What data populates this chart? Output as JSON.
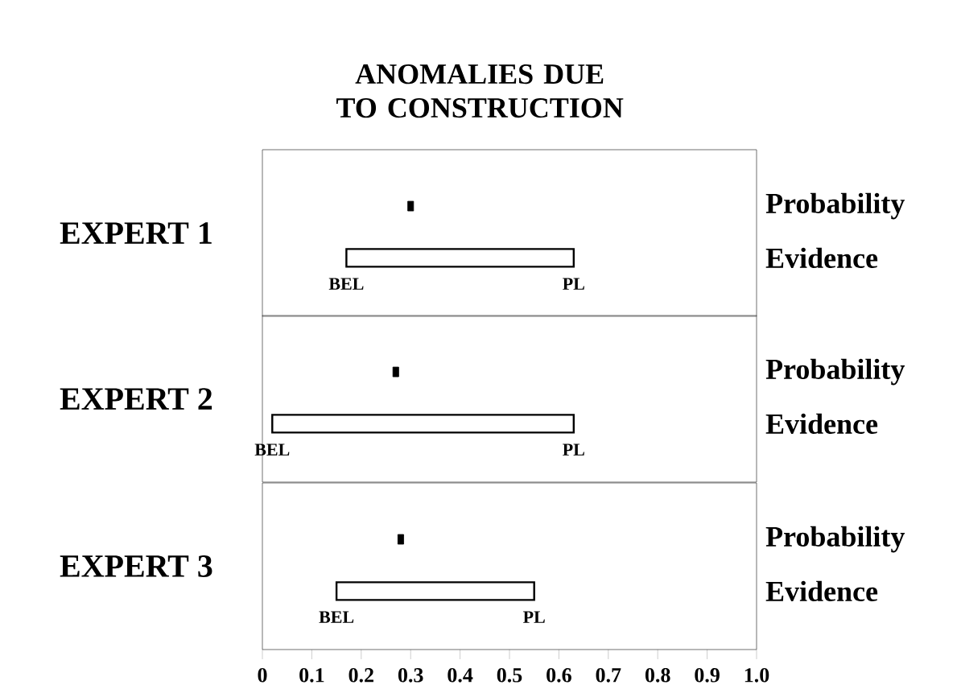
{
  "chart_data": [
    {
      "type": "bar",
      "orientation": "horizontal",
      "title": "ANOMALIES DUE TO CONSTRUCTION",
      "ylabel": "EXPERT 1",
      "categories": [
        "Probability",
        "Evidence"
      ],
      "xlim": [
        0,
        1
      ],
      "tick_labels": "y",
      "series": [
        {
          "type": "scatter",
          "color": "#000000",
          "values": [
            0.3,
            null
          ]
        },
        {
          "type": "bar",
          "color": "#000000",
          "base": [
            null,
            0.17
          ],
          "values": [
            null,
            0.46
          ]
        }
      ],
      "annotations": [
        {
          "text": "BEL",
          "x": 0.17,
          "y": "Evidence"
        },
        {
          "text": "PL",
          "x": 0.63,
          "y": "Evidence"
        }
      ]
    },
    {
      "type": "bar",
      "orientation": "horizontal",
      "ylabel": "EXPERT 2",
      "categories": [
        "Probability",
        "Evidence"
      ],
      "xlim": [
        0,
        1
      ],
      "tick_labels": "y",
      "series": [
        {
          "type": "scatter",
          "color": "#000000",
          "values": [
            0.27,
            null
          ]
        },
        {
          "type": "bar",
          "color": "#000000",
          "base": [
            null,
            0.02
          ],
          "values": [
            null,
            0.61
          ]
        }
      ],
      "annotations": [
        {
          "text": "BEL",
          "x": 0.02,
          "y": "Evidence"
        },
        {
          "text": "PL",
          "x": 0.63,
          "y": "Evidence"
        }
      ]
    },
    {
      "type": "bar",
      "orientation": "horizontal",
      "ylabel": "EXPERT 3",
      "categories": [
        "Probability",
        "Evidence"
      ],
      "xlim": [
        0,
        1
      ],
      "xticks": [
        0,
        0.1,
        0.2,
        0.3,
        0.4,
        0.5,
        0.6,
        0.7,
        0.8,
        0.9,
        {
          "value": 1,
          "label": "1.0"
        }
      ],
      "series": [
        {
          "type": "scatter",
          "color": "#000000",
          "values": [
            0.28,
            null
          ]
        },
        {
          "type": "bar",
          "color": "#000000",
          "base": [
            null,
            0.15
          ],
          "values": [
            null,
            0.4
          ]
        }
      ],
      "annotations": [
        {
          "text": "BEL",
          "x": 0.15,
          "y": "Evidence"
        },
        {
          "text": "PL",
          "x": 0.55,
          "y": "Evidence"
        }
      ]
    }
  ]
}
